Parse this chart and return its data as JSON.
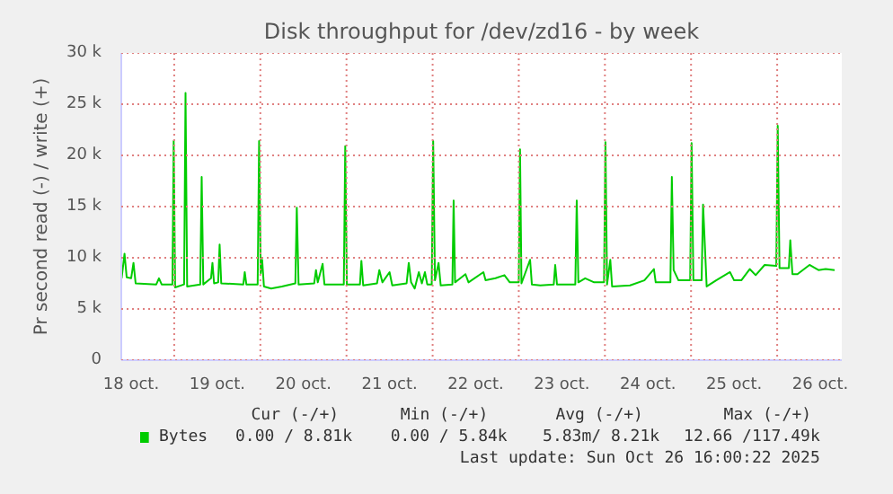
{
  "chart_data": {
    "type": "line",
    "title": "Disk throughput for /dev/zd16 - by week",
    "ylabel": "Pr second read (-) / write (+)",
    "x": [
      "2025-10-18T09:21",
      "2025-10-18T10:09",
      "2025-10-18T10:45",
      "2025-10-18T12:00",
      "2025-10-18T12:39",
      "2025-10-18T13:15",
      "2025-10-18T19:00",
      "2025-10-18T19:45",
      "2025-10-18T20:30",
      "2025-10-18T23:30",
      "2025-10-18T23:51",
      "2025-10-19T00:15",
      "2025-10-19T02:45",
      "2025-10-19T03:09",
      "2025-10-19T03:36",
      "2025-10-19T07:15",
      "2025-10-19T07:39",
      "2025-10-19T08:06",
      "2025-10-19T10:15",
      "2025-10-19T10:39",
      "2025-10-19T11:06",
      "2025-10-19T12:15",
      "2025-10-19T12:39",
      "2025-10-19T13:06",
      "2025-10-19T19:15",
      "2025-10-19T19:39",
      "2025-10-19T20:06",
      "2025-10-19T23:15",
      "2025-10-19T23:39",
      "2025-10-20T00:06",
      "2025-10-20T00:30",
      "2025-10-20T01:00",
      "2025-10-20T03:00",
      "2025-10-20T06:00",
      "2025-10-20T09:45",
      "2025-10-20T10:09",
      "2025-10-20T10:39",
      "2025-10-20T15:00",
      "2025-10-20T15:30",
      "2025-10-20T16:00",
      "2025-10-20T17:21",
      "2025-10-20T17:51",
      "2025-10-20T23:15",
      "2025-10-20T23:39",
      "2025-10-21T00:06",
      "2025-10-21T03:45",
      "2025-10-21T04:09",
      "2025-10-21T04:39",
      "2025-10-21T08:30",
      "2025-10-21T09:09",
      "2025-10-21T10:00",
      "2025-10-21T12:00",
      "2025-10-21T12:45",
      "2025-10-21T16:45",
      "2025-10-21T17:21",
      "2025-10-21T18:00",
      "2025-10-21T19:00",
      "2025-10-21T20:09",
      "2025-10-21T21:00",
      "2025-10-21T21:51",
      "2025-10-21T22:30",
      "2025-10-21T23:45",
      "2025-10-22T00:09",
      "2025-10-22T00:39",
      "2025-10-22T01:39",
      "2025-10-22T02:15",
      "2025-10-22T05:30",
      "2025-10-22T05:51",
      "2025-10-22T06:15",
      "2025-10-22T09:09",
      "2025-10-22T10:00",
      "2025-10-22T14:09",
      "2025-10-22T14:45",
      "2025-10-22T17:30",
      "2025-10-22T20:00",
      "2025-10-22T21:30",
      "2025-10-23T00:00",
      "2025-10-23T00:21",
      "2025-10-23T00:45",
      "2025-10-23T03:09",
      "2025-10-23T03:39",
      "2025-10-23T06:00",
      "2025-10-23T09:45",
      "2025-10-23T10:09",
      "2025-10-23T10:39",
      "2025-10-23T15:45",
      "2025-10-23T16:09",
      "2025-10-23T16:36",
      "2025-10-23T18:30",
      "2025-10-23T21:00",
      "2025-10-23T23:45",
      "2025-10-24T00:09",
      "2025-10-24T00:36",
      "2025-10-24T01:30",
      "2025-10-24T02:00",
      "2025-10-24T07:00",
      "2025-10-24T11:00",
      "2025-10-24T13:39",
      "2025-10-24T14:09",
      "2025-10-24T18:15",
      "2025-10-24T18:39",
      "2025-10-24T19:09",
      "2025-10-24T20:30",
      "2025-10-24T23:45",
      "2025-10-25T00:09",
      "2025-10-25T00:39",
      "2025-10-25T02:57",
      "2025-10-25T03:21",
      "2025-10-25T04:21",
      "2025-10-25T07:00",
      "2025-10-25T10:51",
      "2025-10-25T12:00",
      "2025-10-25T14:00",
      "2025-10-25T16:21",
      "2025-10-25T18:00",
      "2025-10-25T20:30",
      "2025-10-25T23:45",
      "2025-10-26T00:09",
      "2025-10-26T00:39",
      "2025-10-26T03:15",
      "2025-10-26T03:39",
      "2025-10-26T04:15",
      "2025-10-26T05:39",
      "2025-10-26T09:00",
      "2025-10-26T11:30",
      "2025-10-26T13:30",
      "2025-10-26T16:00"
    ],
    "series": [
      {
        "name": "Bytes",
        "color": "#00cc00",
        "values": [
          8000,
          10400,
          8100,
          8000,
          9500,
          7500,
          7400,
          8000,
          7400,
          7400,
          21400,
          7100,
          7400,
          26100,
          7200,
          7400,
          17900,
          7400,
          8000,
          9500,
          7500,
          7600,
          11300,
          7500,
          7400,
          8600,
          7400,
          7400,
          21400,
          8500,
          9800,
          7200,
          7000,
          7200,
          7500,
          14900,
          7400,
          7500,
          8800,
          7600,
          9400,
          7400,
          7400,
          20900,
          7400,
          7400,
          9700,
          7300,
          7500,
          8800,
          7600,
          8600,
          7300,
          7500,
          9500,
          7600,
          7000,
          8600,
          7500,
          8600,
          7400,
          7400,
          21400,
          7800,
          9500,
          7300,
          7400,
          15600,
          7600,
          8400,
          7600,
          8600,
          7800,
          8000,
          8300,
          7600,
          7600,
          20600,
          7500,
          9800,
          7400,
          7300,
          7400,
          9300,
          7400,
          7400,
          15600,
          7600,
          8000,
          7600,
          7600,
          21300,
          7400,
          9800,
          7200,
          7300,
          7800,
          8900,
          7600,
          7600,
          17900,
          8800,
          7800,
          7800,
          21200,
          7800,
          7800,
          15200,
          7200,
          7800,
          8600,
          7800,
          7800,
          8900,
          8300,
          9300,
          9200,
          22900,
          9000,
          9000,
          11700,
          8400,
          8400,
          9300,
          8800,
          8900,
          8800
        ]
      }
    ],
    "xlim": [
      "2025-10-18T09:15",
      "2025-10-26T18:00"
    ],
    "xticks": [
      {
        "value": "2025-10-18T12:00",
        "label": "18 oct."
      },
      {
        "value": "2025-10-19T00:00",
        "label": null
      },
      {
        "value": "2025-10-19T12:00",
        "label": "19 oct."
      },
      {
        "value": "2025-10-20T00:00",
        "label": null
      },
      {
        "value": "2025-10-20T12:00",
        "label": "20 oct."
      },
      {
        "value": "2025-10-21T00:00",
        "label": null
      },
      {
        "value": "2025-10-21T12:00",
        "label": "21 oct."
      },
      {
        "value": "2025-10-22T00:00",
        "label": null
      },
      {
        "value": "2025-10-22T12:00",
        "label": "22 oct."
      },
      {
        "value": "2025-10-23T00:00",
        "label": null
      },
      {
        "value": "2025-10-23T12:00",
        "label": "23 oct."
      },
      {
        "value": "2025-10-24T00:00",
        "label": null
      },
      {
        "value": "2025-10-24T12:00",
        "label": "24 oct."
      },
      {
        "value": "2025-10-25T00:00",
        "label": null
      },
      {
        "value": "2025-10-25T12:00",
        "label": "25 oct."
      },
      {
        "value": "2025-10-26T00:00",
        "label": null
      },
      {
        "value": "2025-10-26T12:00",
        "label": "26 oct."
      }
    ],
    "ylim": [
      0,
      30000
    ],
    "yticks": [
      {
        "value": 0,
        "label": "0"
      },
      {
        "value": 5000,
        "label": "5 k"
      },
      {
        "value": 10000,
        "label": "10 k"
      },
      {
        "value": 15000,
        "label": "15 k"
      },
      {
        "value": 20000,
        "label": "20 k"
      },
      {
        "value": 25000,
        "label": "25 k"
      },
      {
        "value": 30000,
        "label": "30 k"
      }
    ],
    "grid": true,
    "legend": "bottom",
    "marker": "none",
    "line_style": "solid",
    "annotations": [
      "Cur (-/+)",
      "Min (-/+)",
      "Avg (-/+)",
      "Max (-/+)",
      "0.00 /  8.81k",
      "0.00 /  5.84k",
      "5.83m/  8.21k",
      "12.66 /117.49k",
      "Last update: Sun Oct 26 16:00:22 2025"
    ]
  }
}
